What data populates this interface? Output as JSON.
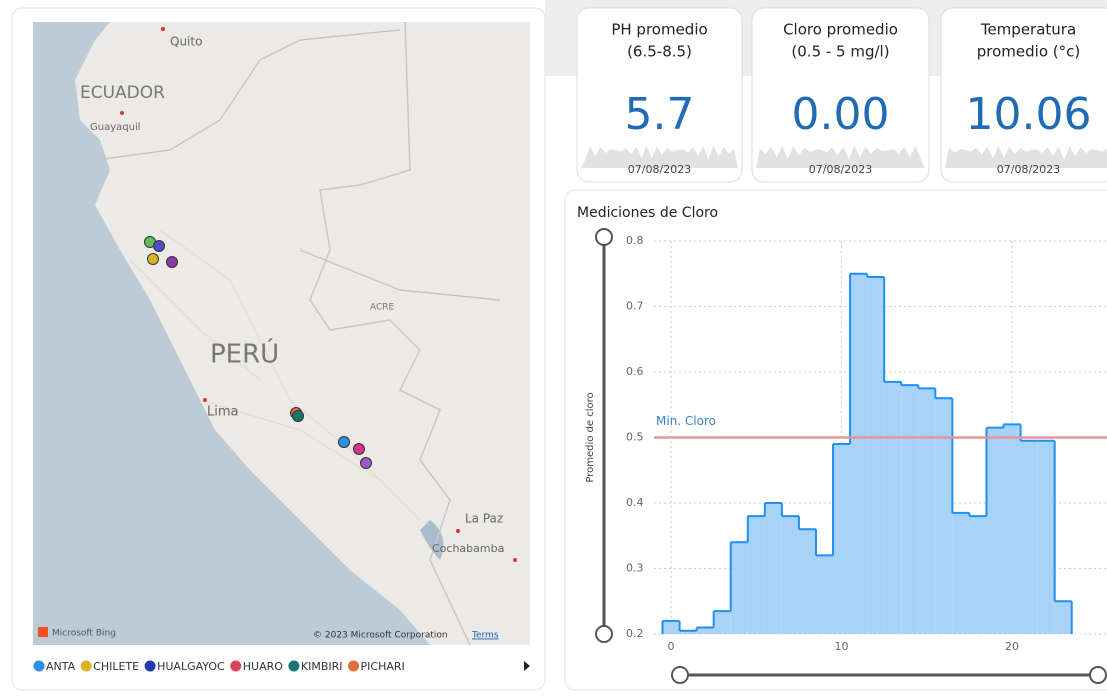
{
  "map": {
    "labels": [
      "Quito",
      "ECUADOR",
      "Guayaquil",
      "PERÚ",
      "Lima",
      "ACRE",
      "La Paz",
      "Cochabamba"
    ],
    "bing": "Microsoft Bing",
    "copyright": "© 2023 Microsoft Corporation",
    "terms": "Terms",
    "legend": [
      {
        "name": "ANTA",
        "color": "#2f8fe8"
      },
      {
        "name": "CHILETE",
        "color": "#d9b424"
      },
      {
        "name": "HUALGAYOC",
        "color": "#1f3bb0"
      },
      {
        "name": "HUARO",
        "color": "#d9415c"
      },
      {
        "name": "KIMBIRI",
        "color": "#15776f"
      },
      {
        "name": "PICHARI",
        "color": "#e0703a"
      }
    ]
  },
  "cards": [
    {
      "title": [
        "PH promedio",
        "(6.5-8.5)"
      ],
      "value": "5.7",
      "date": "07/08/2023"
    },
    {
      "title": [
        "Cloro promedio",
        "(0.5 - 5 mg/l)"
      ],
      "value": "0.00",
      "date": "07/08/2023"
    },
    {
      "title": [
        "Temperatura",
        "promedio (°c)"
      ],
      "value": "10.06",
      "date": "07/08/2023"
    }
  ],
  "chart": {
    "type": "step",
    "title": "Mediciones de Cloro",
    "y_label": "Promedio de cloro",
    "color": "#1f8ff0",
    "fill": "#a8d2f8",
    "x": [
      0,
      1,
      2,
      3,
      4,
      5,
      6,
      7,
      8,
      9,
      10,
      11,
      12,
      13,
      14,
      15,
      16,
      17,
      18,
      19,
      20,
      21,
      22,
      23
    ],
    "values": [
      0.22,
      0.205,
      0.21,
      0.235,
      0.34,
      0.38,
      0.4,
      0.38,
      0.36,
      0.32,
      0.49,
      0.75,
      0.745,
      0.585,
      0.58,
      0.575,
      0.56,
      0.385,
      0.38,
      0.515,
      0.52,
      0.495,
      0.495,
      0.25
    ],
    "xlim": [
      -1,
      26
    ],
    "xticks": [
      0,
      10,
      20
    ],
    "ylim": [
      0.2,
      0.8
    ],
    "yticks": [
      0.2,
      0.3,
      0.4,
      0.5,
      0.6,
      0.7,
      0.8
    ],
    "grid": true,
    "reference": {
      "label": "Min. Cloro",
      "value": 0.5,
      "color": "#e8949c"
    }
  }
}
